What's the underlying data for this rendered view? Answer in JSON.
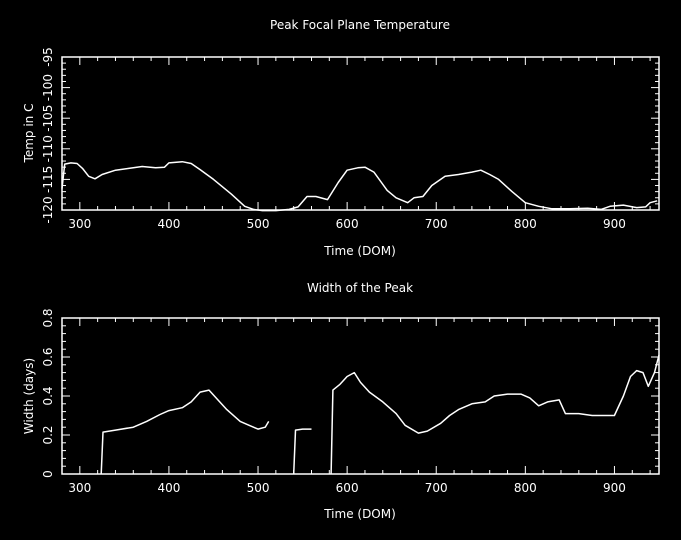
{
  "colors": {
    "background": "#000000",
    "foreground": "#ffffff"
  },
  "chart_data": [
    {
      "type": "line",
      "title": "Peak Focal Plane Temperature",
      "xlabel": "Time (DOM)",
      "ylabel": "Temp in C",
      "xlim": [
        280,
        950
      ],
      "ylim": [
        -120,
        -95
      ],
      "xticks": [
        300,
        400,
        500,
        600,
        700,
        800,
        900
      ],
      "yticks": [
        -120,
        -115,
        -110,
        -105,
        -100,
        -95
      ],
      "grid": false,
      "series": [
        {
          "segments": [
            [
              [
                280,
                -116.5
              ],
              [
                283,
                -112.5
              ],
              [
                290,
                -112.3
              ],
              [
                297,
                -112.4
              ],
              [
                303,
                -113.2
              ],
              [
                310,
                -114.5
              ],
              [
                317,
                -114.9
              ],
              [
                325,
                -114.2
              ],
              [
                340,
                -113.5
              ],
              [
                355,
                -113.2
              ],
              [
                370,
                -112.9
              ],
              [
                385,
                -113.1
              ],
              [
                395,
                -113.0
              ],
              [
                400,
                -112.3
              ],
              [
                415,
                -112.1
              ],
              [
                425,
                -112.4
              ],
              [
                435,
                -113.4
              ],
              [
                450,
                -115.0
              ],
              [
                470,
                -117.4
              ],
              [
                485,
                -119.4
              ],
              [
                495,
                -119.9
              ],
              [
                505,
                -120.1
              ],
              [
                520,
                -120.1
              ],
              [
                535,
                -119.9
              ],
              [
                545,
                -119.5
              ],
              [
                555,
                -117.8
              ],
              [
                565,
                -117.8
              ],
              [
                578,
                -118.3
              ],
              [
                590,
                -115.5
              ],
              [
                600,
                -113.5
              ],
              [
                612,
                -113.1
              ],
              [
                620,
                -113.0
              ],
              [
                630,
                -113.8
              ],
              [
                645,
                -116.8
              ],
              [
                655,
                -118.0
              ],
              [
                668,
                -118.8
              ],
              [
                675,
                -118.0
              ],
              [
                685,
                -117.8
              ],
              [
                695,
                -116.0
              ],
              [
                710,
                -114.5
              ],
              [
                725,
                -114.2
              ],
              [
                740,
                -113.8
              ],
              [
                750,
                -113.5
              ],
              [
                760,
                -114.2
              ],
              [
                770,
                -115.0
              ],
              [
                785,
                -117.0
              ],
              [
                800,
                -118.8
              ],
              [
                815,
                -119.4
              ],
              [
                830,
                -119.8
              ],
              [
                850,
                -119.8
              ],
              [
                870,
                -119.7
              ],
              [
                885,
                -119.9
              ],
              [
                895,
                -119.4
              ],
              [
                910,
                -119.2
              ],
              [
                925,
                -119.6
              ],
              [
                935,
                -119.5
              ],
              [
                940,
                -118.8
              ],
              [
                948,
                -118.5
              ]
            ]
          ]
        }
      ]
    },
    {
      "type": "line",
      "title": "Width of the Peak",
      "xlabel": "Time (DOM)",
      "ylabel": "Width (days)",
      "xlim": [
        280,
        950
      ],
      "ylim": [
        0,
        0.8
      ],
      "xticks": [
        300,
        400,
        500,
        600,
        700,
        800,
        900
      ],
      "yticks": [
        0,
        0.2,
        0.4,
        0.6,
        0.8
      ],
      "grid": false,
      "series": [
        {
          "segments": [
            [
              [
                324,
                0.0
              ],
              [
                326,
                0.215
              ],
              [
                340,
                0.225
              ],
              [
                360,
                0.24
              ],
              [
                375,
                0.27
              ],
              [
                390,
                0.305
              ],
              [
                400,
                0.325
              ],
              [
                415,
                0.34
              ],
              [
                425,
                0.37
              ],
              [
                435,
                0.42
              ],
              [
                445,
                0.43
              ],
              [
                455,
                0.38
              ],
              [
                465,
                0.33
              ],
              [
                480,
                0.27
              ],
              [
                490,
                0.25
              ],
              [
                500,
                0.23
              ],
              [
                508,
                0.24
              ],
              [
                512,
                0.27
              ]
            ],
            [
              [
                540,
                0.0
              ],
              [
                542,
                0.225
              ],
              [
                550,
                0.23
              ],
              [
                560,
                0.23
              ]
            ],
            [
              [
                582,
                0.0
              ],
              [
                584,
                0.43
              ],
              [
                592,
                0.46
              ],
              [
                600,
                0.5
              ],
              [
                608,
                0.52
              ],
              [
                615,
                0.47
              ],
              [
                625,
                0.42
              ],
              [
                640,
                0.37
              ],
              [
                655,
                0.31
              ],
              [
                665,
                0.25
              ],
              [
                680,
                0.21
              ],
              [
                690,
                0.22
              ],
              [
                705,
                0.26
              ],
              [
                715,
                0.3
              ],
              [
                725,
                0.33
              ],
              [
                740,
                0.36
              ],
              [
                755,
                0.37
              ],
              [
                765,
                0.4
              ],
              [
                780,
                0.41
              ],
              [
                795,
                0.41
              ],
              [
                805,
                0.39
              ],
              [
                815,
                0.35
              ],
              [
                825,
                0.37
              ],
              [
                838,
                0.38
              ],
              [
                845,
                0.31
              ],
              [
                860,
                0.31
              ],
              [
                875,
                0.3
              ],
              [
                890,
                0.3
              ],
              [
                900,
                0.3
              ],
              [
                910,
                0.4
              ],
              [
                918,
                0.5
              ],
              [
                925,
                0.53
              ],
              [
                932,
                0.52
              ],
              [
                938,
                0.45
              ],
              [
                945,
                0.52
              ],
              [
                950,
                0.61
              ]
            ]
          ]
        }
      ]
    }
  ]
}
